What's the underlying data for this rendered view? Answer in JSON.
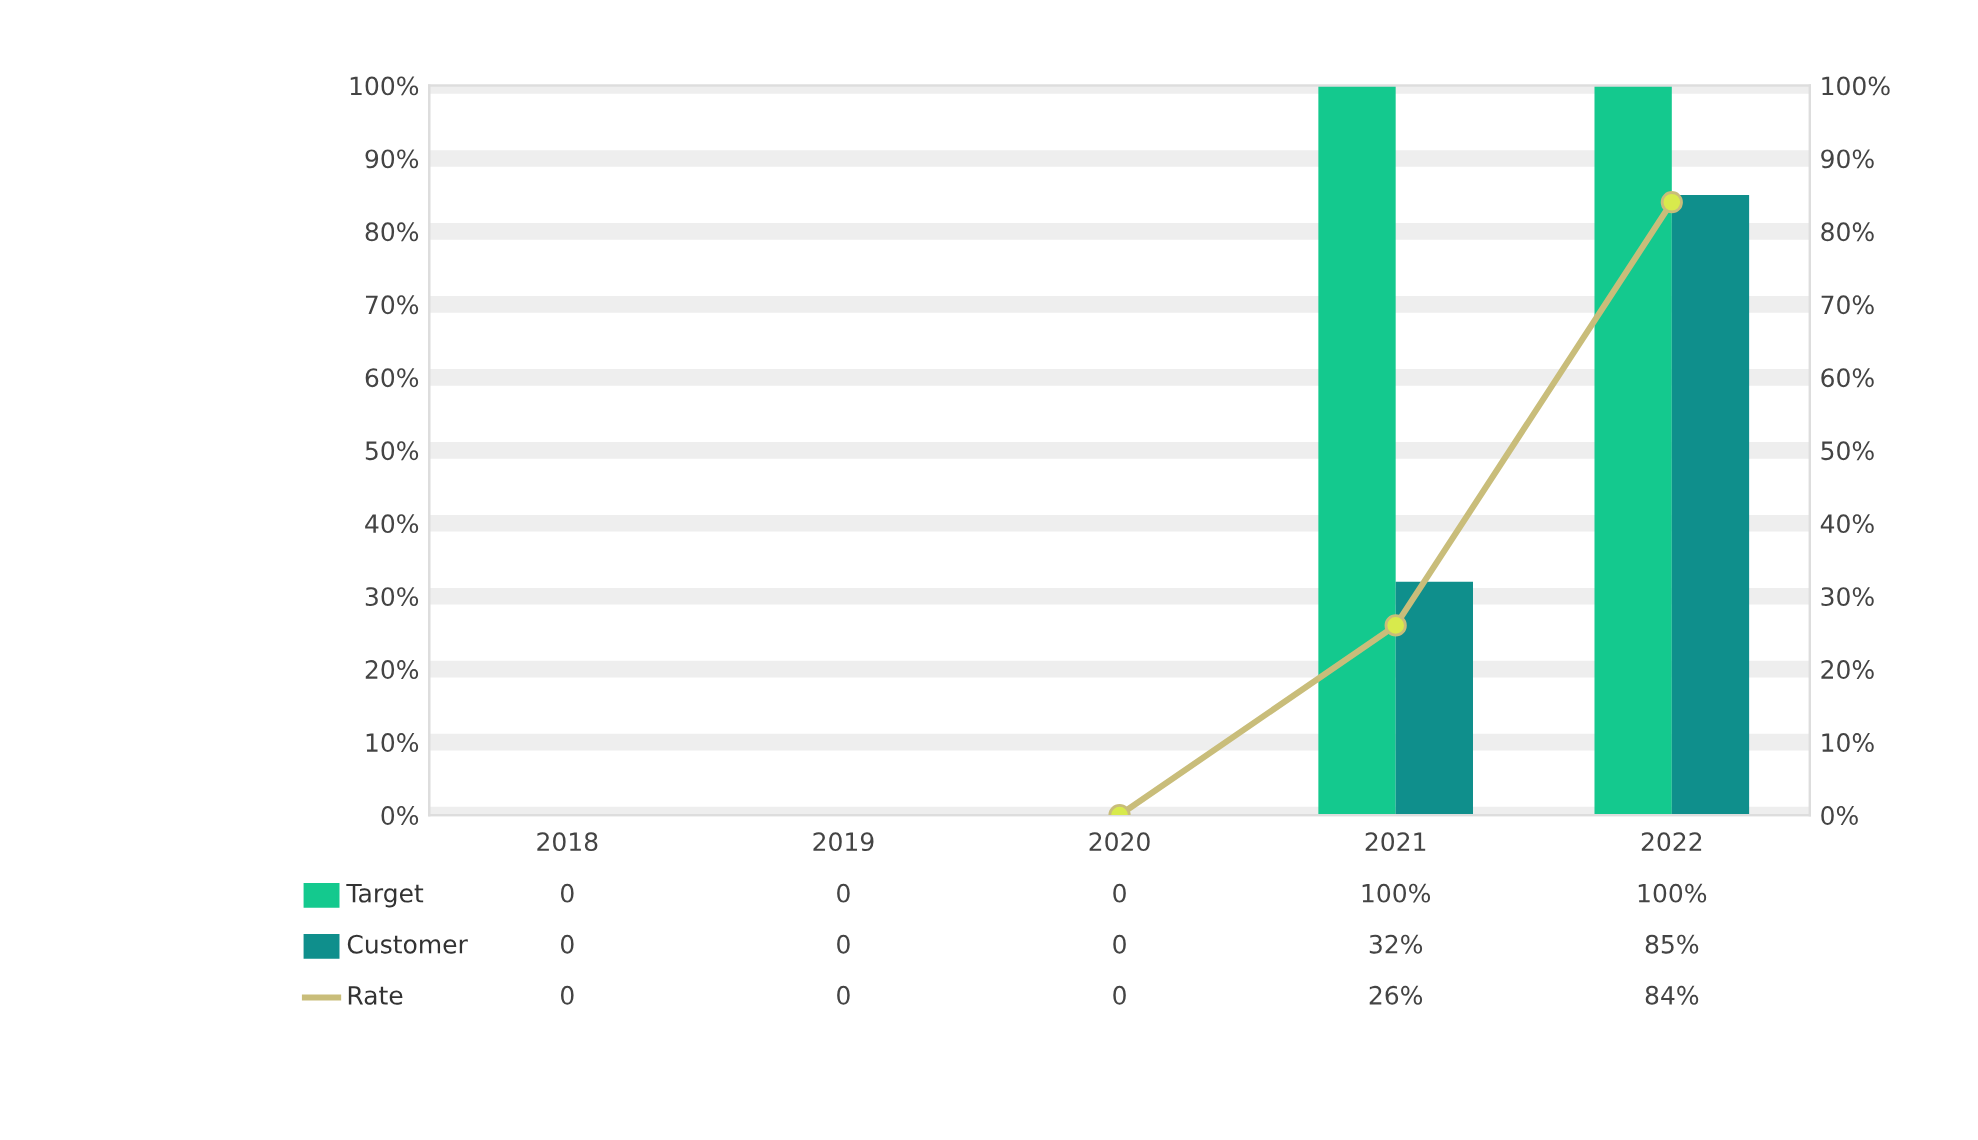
{
  "chart_data": {
    "type": "bar",
    "categories": [
      "2018",
      "2019",
      "2020",
      "2021",
      "2022"
    ],
    "series": [
      {
        "name": "Target",
        "color": "#14c98e",
        "values": [
          0,
          0,
          0,
          100,
          100
        ],
        "value_labels": [
          "0",
          "0",
          "0",
          "100%",
          "100%"
        ]
      },
      {
        "name": "Customer",
        "color": "#0f8f8c",
        "values": [
          0,
          0,
          0,
          32,
          85
        ],
        "value_labels": [
          "0",
          "0",
          "0",
          "32%",
          "85%"
        ]
      },
      {
        "name": "Rate",
        "type": "line",
        "axis": "y2",
        "color": "#c9bd7a",
        "marker": "circle",
        "values": [
          null,
          null,
          0,
          26,
          84
        ],
        "value_labels": [
          "0",
          "0",
          "0",
          "26%",
          "84%"
        ]
      }
    ],
    "ylim": [
      0,
      100
    ],
    "yticks": [
      {
        "value": 0,
        "label": "0%"
      },
      {
        "value": 10,
        "label": "10%"
      },
      {
        "value": 20,
        "label": "20%"
      },
      {
        "value": 30,
        "label": "30%"
      },
      {
        "value": 40,
        "label": "40%"
      },
      {
        "value": 50,
        "label": "50%"
      },
      {
        "value": 60,
        "label": "60%"
      },
      {
        "value": 70,
        "label": "70%"
      },
      {
        "value": 80,
        "label": "80%"
      },
      {
        "value": 90,
        "label": "90%"
      },
      {
        "value": 100,
        "label": "100%"
      }
    ],
    "y2lim": [
      0,
      100
    ],
    "y2ticks": [
      {
        "value": 0,
        "label": "0%"
      },
      {
        "value": 10,
        "label": "10%"
      },
      {
        "value": 20,
        "label": "20%"
      },
      {
        "value": 30,
        "label": "30%"
      },
      {
        "value": 40,
        "label": "40%"
      },
      {
        "value": 50,
        "label": "50%"
      },
      {
        "value": 60,
        "label": "60%"
      },
      {
        "value": 70,
        "label": "70%"
      },
      {
        "value": 80,
        "label": "80%"
      },
      {
        "value": 90,
        "label": "90%"
      },
      {
        "value": 100,
        "label": "100%"
      }
    ],
    "grid": "y",
    "legend": "bottom left"
  }
}
